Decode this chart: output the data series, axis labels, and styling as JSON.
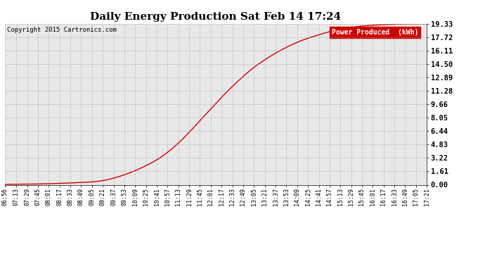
{
  "title": "Daily Energy Production Sat Feb 14 17:24",
  "copyright_text": "Copyright 2015 Cartronics.com",
  "legend_label": "Power Produced  (kWh)",
  "line_color": "#cc0000",
  "background_color": "#ffffff",
  "plot_bg_color": "#e8e8e8",
  "ytick_labels": [
    "0.00",
    "1.61",
    "3.22",
    "4.83",
    "6.44",
    "8.05",
    "9.66",
    "11.28",
    "12.89",
    "14.50",
    "16.11",
    "17.72",
    "19.33"
  ],
  "ytick_values": [
    0.0,
    1.61,
    3.22,
    4.83,
    6.44,
    8.05,
    9.66,
    11.28,
    12.89,
    14.5,
    16.11,
    17.72,
    19.33
  ],
  "ylim": [
    0.0,
    19.33
  ],
  "xtick_labels": [
    "06:56",
    "07:13",
    "07:29",
    "07:45",
    "08:01",
    "08:17",
    "08:33",
    "08:49",
    "09:05",
    "09:21",
    "09:37",
    "09:53",
    "10:09",
    "10:25",
    "10:41",
    "10:57",
    "11:13",
    "11:29",
    "11:45",
    "12:01",
    "12:17",
    "12:33",
    "12:49",
    "13:05",
    "13:21",
    "13:37",
    "13:53",
    "14:09",
    "14:25",
    "14:41",
    "14:57",
    "15:13",
    "15:29",
    "15:45",
    "16:01",
    "16:17",
    "16:33",
    "16:49",
    "17:05",
    "17:21"
  ],
  "legend_bg": "#cc0000",
  "legend_text_color": "#ffffff",
  "curve_points_x": [
    0,
    17,
    33,
    49,
    65,
    81,
    97,
    113,
    129,
    145,
    161,
    177,
    193,
    209,
    225,
    241,
    257,
    273,
    289,
    305,
    321,
    337,
    353,
    369,
    385,
    401,
    417,
    433,
    449,
    465,
    481,
    497,
    513,
    529,
    545,
    561,
    577,
    593,
    609,
    625
  ],
  "curve_points_y": [
    0.05,
    0.07,
    0.08,
    0.1,
    0.13,
    0.17,
    0.22,
    0.28,
    0.35,
    0.5,
    0.8,
    1.2,
    1.7,
    2.3,
    3.0,
    3.9,
    5.0,
    6.3,
    7.7,
    9.1,
    10.5,
    11.8,
    13.0,
    14.1,
    15.0,
    15.8,
    16.5,
    17.1,
    17.6,
    18.0,
    18.4,
    18.7,
    18.9,
    19.05,
    19.15,
    19.22,
    19.27,
    19.3,
    19.32,
    19.33
  ]
}
